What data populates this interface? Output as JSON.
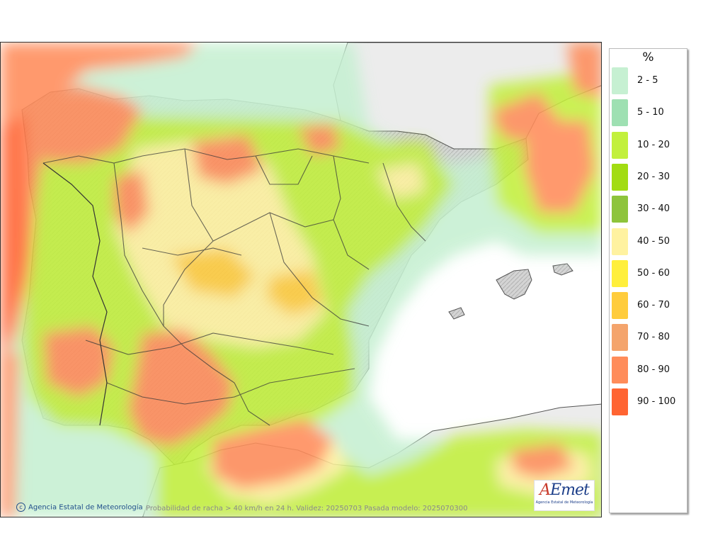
{
  "legend": {
    "unit": "%",
    "items": [
      {
        "label": "2 - 5",
        "color": "#c6f0d2"
      },
      {
        "label": "5 - 10",
        "color": "#9ee0b2"
      },
      {
        "label": "10 - 20",
        "color": "#c2f03c"
      },
      {
        "label": "20 - 30",
        "color": "#a2dc12"
      },
      {
        "label": "30 - 40",
        "color": "#8ec43c"
      },
      {
        "label": "40 - 50",
        "color": "#fff2a0"
      },
      {
        "label": "50 - 60",
        "color": "#ffef3c"
      },
      {
        "label": "60 - 70",
        "color": "#ffcc3c"
      },
      {
        "label": "70 - 80",
        "color": "#f4a46c"
      },
      {
        "label": "80 - 90",
        "color": "#ff8c5a"
      },
      {
        "label": "90 - 100",
        "color": "#ff6432"
      }
    ]
  },
  "credit": "Agencia Estatal de Meteorología",
  "footnote": "Probabilidad de racha > 40 km/h en 24 h. Validez: 20250703 Pasada modelo: 2025070300",
  "logo": {
    "name": "AEmet",
    "subtitle": "Agencia Estatal de Meteorología"
  }
}
